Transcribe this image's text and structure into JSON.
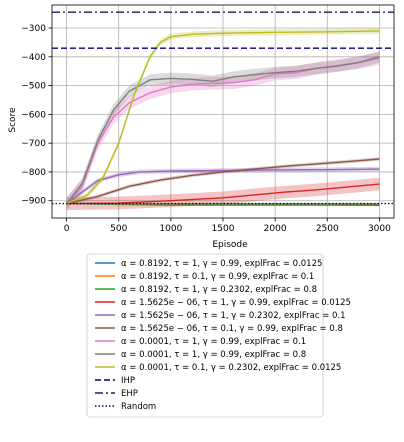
{
  "chart_data": {
    "type": "line",
    "xlabel": "Episode",
    "ylabel": "Score",
    "xlim": [
      -140,
      3140
    ],
    "ylim": [
      -960,
      -220
    ],
    "xticks": [
      0,
      500,
      1000,
      1500,
      2000,
      2500,
      3000
    ],
    "yticks": [
      -900,
      -800,
      -700,
      -600,
      -500,
      -400,
      -300
    ],
    "grid": true,
    "legend_position": "below",
    "series": [
      {
        "name": "α = 0.8192, τ = 1, γ = 0.99, explFrac = 0.0125",
        "color": "#1f77b4",
        "band": 0,
        "x": [
          0,
          500,
          1000,
          1500,
          2000,
          2500,
          3000
        ],
        "y": [
          -910,
          -913,
          -915,
          -915,
          -915,
          -915,
          -916
        ]
      },
      {
        "name": "α = 0.8192, τ = 0.1, γ = 0.99, explFrac = 0.1",
        "color": "#ff7f0e",
        "band": 0,
        "x": [
          0,
          500,
          1000,
          1500,
          2000,
          2500,
          3000
        ],
        "y": [
          -910,
          -912,
          -912,
          -912,
          -912,
          -912,
          -912
        ]
      },
      {
        "name": "α = 0.8192, τ = 1, γ = 0.2302, explFrac = 0.8",
        "color": "#2ca02c",
        "band": 0,
        "x": [
          0,
          500,
          1000,
          1500,
          2000,
          2500,
          3000
        ],
        "y": [
          -910,
          -911,
          -911,
          -911,
          -911,
          -911,
          -911
        ]
      },
      {
        "name": "α = 1.5625e − 06, τ = 1, γ = 0.99, explFrac = 0.0125",
        "color": "#d62728",
        "band": 22,
        "x": [
          0,
          500,
          1000,
          1500,
          1800,
          2100,
          2400,
          2700,
          3000
        ],
        "y": [
          -910,
          -908,
          -900,
          -890,
          -880,
          -870,
          -862,
          -852,
          -842
        ]
      },
      {
        "name": "α = 1.5625e − 06, τ = 1, γ = 0.2302, explFrac = 0.1",
        "color": "#9467bd",
        "band": 8,
        "x": [
          0,
          300,
          500,
          700,
          1000,
          1500,
          2000,
          2500,
          3000
        ],
        "y": [
          -910,
          -830,
          -810,
          -800,
          -797,
          -795,
          -793,
          -792,
          -790
        ]
      },
      {
        "name": "α = 1.5625e − 06, τ = 0.1, γ = 0.99, explFrac = 0.8",
        "color": "#8c564b",
        "band": 6,
        "x": [
          0,
          300,
          600,
          900,
          1200,
          1500,
          1800,
          2100,
          2400,
          2700,
          3000
        ],
        "y": [
          -910,
          -885,
          -850,
          -828,
          -812,
          -800,
          -790,
          -780,
          -772,
          -764,
          -755
        ]
      },
      {
        "name": "α = 0.0001, τ = 1, γ = 0.99, explFrac = 0.1",
        "color": "#e377c2",
        "band": 22,
        "x": [
          0,
          150,
          300,
          450,
          600,
          800,
          1000,
          1200,
          1400,
          1600,
          1800,
          2000,
          2200,
          2400,
          2600,
          2800,
          3000
        ],
        "y": [
          -910,
          -850,
          -700,
          -610,
          -560,
          -525,
          -505,
          -495,
          -492,
          -490,
          -480,
          -460,
          -455,
          -440,
          -430,
          -420,
          -405
        ]
      },
      {
        "name": "α = 0.0001, τ = 1, γ = 0.99, explFrac = 0.8",
        "color": "#7f7f7f",
        "band": 20,
        "x": [
          0,
          150,
          300,
          450,
          600,
          800,
          1000,
          1200,
          1400,
          1600,
          1800,
          2000,
          2200,
          2400,
          2600,
          2800,
          3000
        ],
        "y": [
          -910,
          -840,
          -690,
          -585,
          -520,
          -480,
          -475,
          -478,
          -485,
          -470,
          -462,
          -455,
          -450,
          -440,
          -432,
          -420,
          -400
        ]
      },
      {
        "name": "α = 0.0001, τ = 0.1, γ = 0.2302, explFrac = 0.0125",
        "color": "#bcbd22",
        "band": 10,
        "x": [
          0,
          200,
          350,
          500,
          650,
          800,
          900,
          1000,
          1200,
          1500,
          2000,
          2500,
          3000
        ],
        "y": [
          -910,
          -880,
          -820,
          -700,
          -530,
          -400,
          -350,
          -330,
          -322,
          -318,
          -315,
          -313,
          -310
        ]
      }
    ],
    "reference_lines": [
      {
        "name": "IHP",
        "y": -370,
        "color": "#000080",
        "style": "dashed"
      },
      {
        "name": "EHP",
        "y": -245,
        "color": "#191970",
        "style": "dashdot"
      },
      {
        "name": "Random",
        "y": -910,
        "color": "#00008b",
        "style": "dotted"
      }
    ]
  }
}
